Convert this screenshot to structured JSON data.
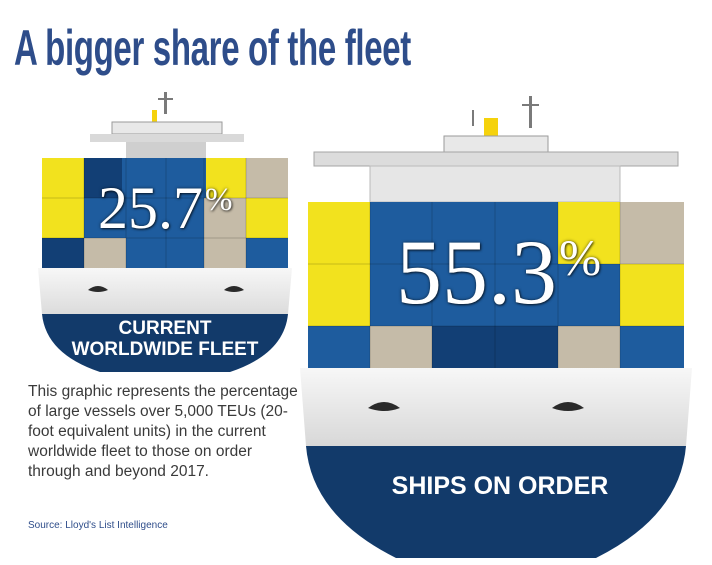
{
  "title": "A bigger share of the fleet",
  "description": "This graphic represents the percentage of large vessels over 5,000 TEUs (20-foot equivalent units) in the current worldwide fleet to those on order through and beyond 2017.",
  "source": "Source: Lloyd's List Intelligence",
  "ships": {
    "current": {
      "value_text": "25.7",
      "percent_symbol": "%",
      "label_line1": "CURRENT",
      "label_line2": "WORLDWIDE FLEET"
    },
    "on_order": {
      "value_text": "55.3",
      "percent_symbol": "%",
      "label": "SHIPS ON ORDER"
    }
  },
  "colors": {
    "title": "#2e4d8a",
    "navy_hull": "#123a6a",
    "white_hull": "#eeeeee",
    "container_yellow": "#f2e21e",
    "container_blue": "#1e5c9e",
    "container_navy": "#123f75",
    "container_tan": "#c5bba8",
    "funnel_yellow": "#f5d20c",
    "superstructure": "#e8e8e8"
  },
  "chart_data": {
    "type": "bar",
    "categories": [
      "CURRENT WORLDWIDE FLEET",
      "SHIPS ON ORDER"
    ],
    "values": [
      25.7,
      55.3
    ],
    "unit": "%",
    "title": "A bigger share of the fleet",
    "xlabel": "",
    "ylabel": ""
  }
}
